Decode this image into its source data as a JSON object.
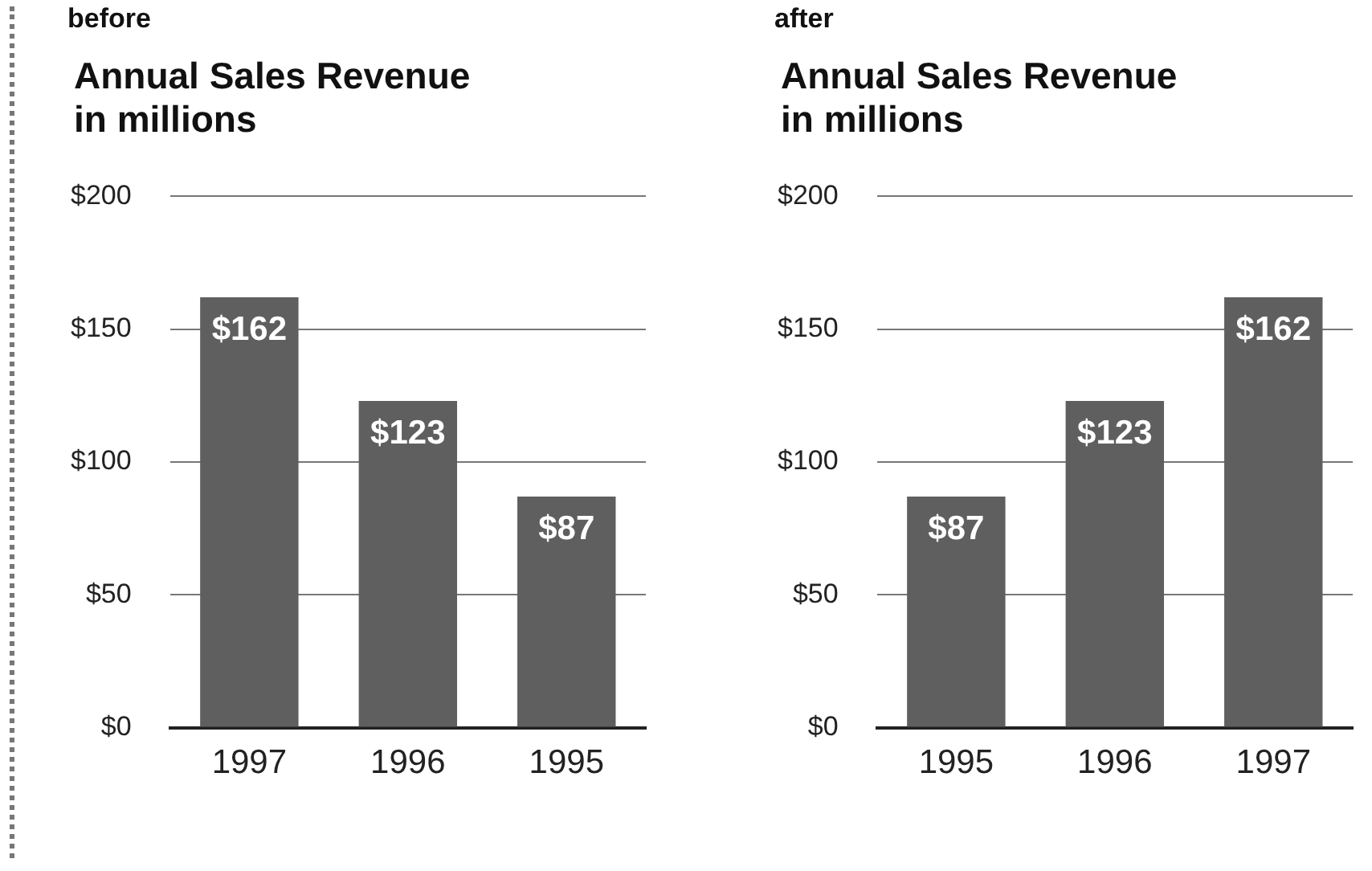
{
  "chart_data": [
    {
      "type": "bar",
      "annotations": [
        "before"
      ],
      "title": "Annual Sales Revenue\nin millions",
      "categories": [
        "1997",
        "1996",
        "1995"
      ],
      "values": [
        162,
        123,
        87
      ],
      "color": "#5f5f5f",
      "ylim": [
        0,
        200
      ],
      "yticks": [
        {
          "value": 0,
          "label": "$0"
        },
        {
          "value": 50,
          "label": "$50"
        },
        {
          "value": 100,
          "label": "$100"
        },
        {
          "value": 150,
          "label": "$150"
        },
        {
          "value": 200,
          "label": "$200"
        }
      ],
      "grid": "y",
      "value_labels": [
        "$162",
        "$123",
        "$87"
      ]
    },
    {
      "type": "bar",
      "annotations": [
        "after"
      ],
      "title": "Annual Sales Revenue\nin millions",
      "categories": [
        "1995",
        "1996",
        "1997"
      ],
      "values": [
        87,
        123,
        162
      ],
      "color": "#5f5f5f",
      "ylim": [
        0,
        200
      ],
      "yticks": [
        {
          "value": 0,
          "label": "$0"
        },
        {
          "value": 50,
          "label": "$50"
        },
        {
          "value": 100,
          "label": "$100"
        },
        {
          "value": 150,
          "label": "$150"
        },
        {
          "value": 200,
          "label": "$200"
        }
      ],
      "grid": "y",
      "value_labels": [
        "$87",
        "$123",
        "$162"
      ]
    }
  ]
}
